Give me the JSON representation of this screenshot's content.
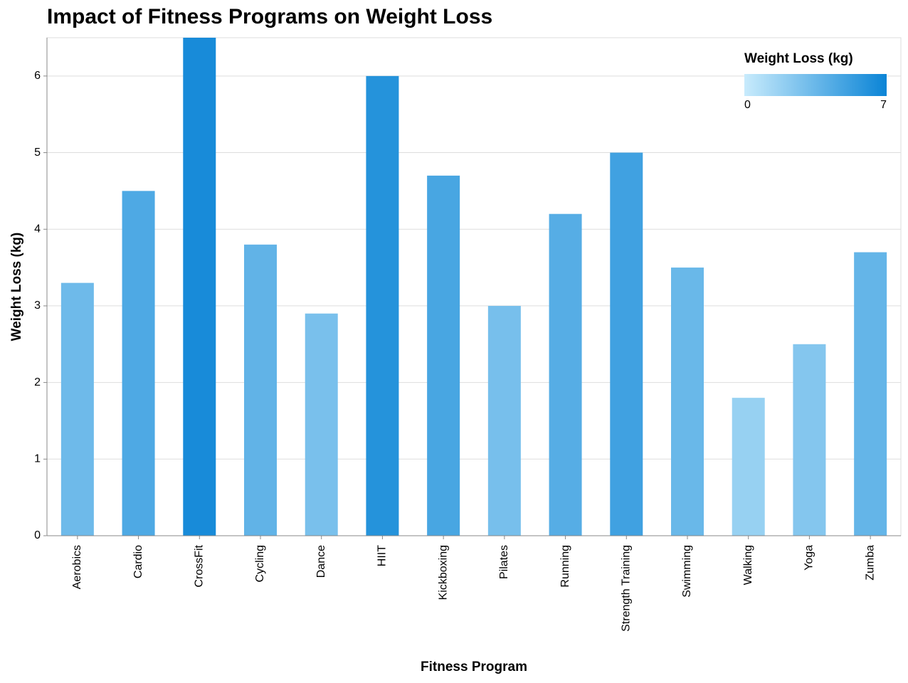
{
  "chart_data": {
    "type": "bar",
    "title": "Impact of Fitness Programs on Weight Loss",
    "x_label": "Fitness Program",
    "y_label": "Weight Loss (kg)",
    "categories": [
      "Aerobics",
      "Cardio",
      "CrossFit",
      "Cycling",
      "Dance",
      "HIIT",
      "Kickboxing",
      "Pilates",
      "Running",
      "Strength Training",
      "Swimming",
      "Walking",
      "Yoga",
      "Zumba"
    ],
    "values": [
      3.3,
      4.5,
      6.5,
      3.8,
      2.9,
      6.0,
      4.7,
      3.0,
      4.2,
      5.0,
      3.5,
      1.8,
      2.5,
      3.7
    ],
    "ylim": [
      0,
      6.5
    ],
    "yticks": [
      0,
      1,
      2,
      3,
      4,
      5,
      6
    ],
    "grid": true,
    "legend": {
      "title": "Weight Loss (kg)",
      "position": "top-right"
    },
    "color_scale": {
      "domain": [
        0,
        7
      ],
      "range": [
        "#c8ebfc",
        "#0a84d6"
      ]
    }
  }
}
